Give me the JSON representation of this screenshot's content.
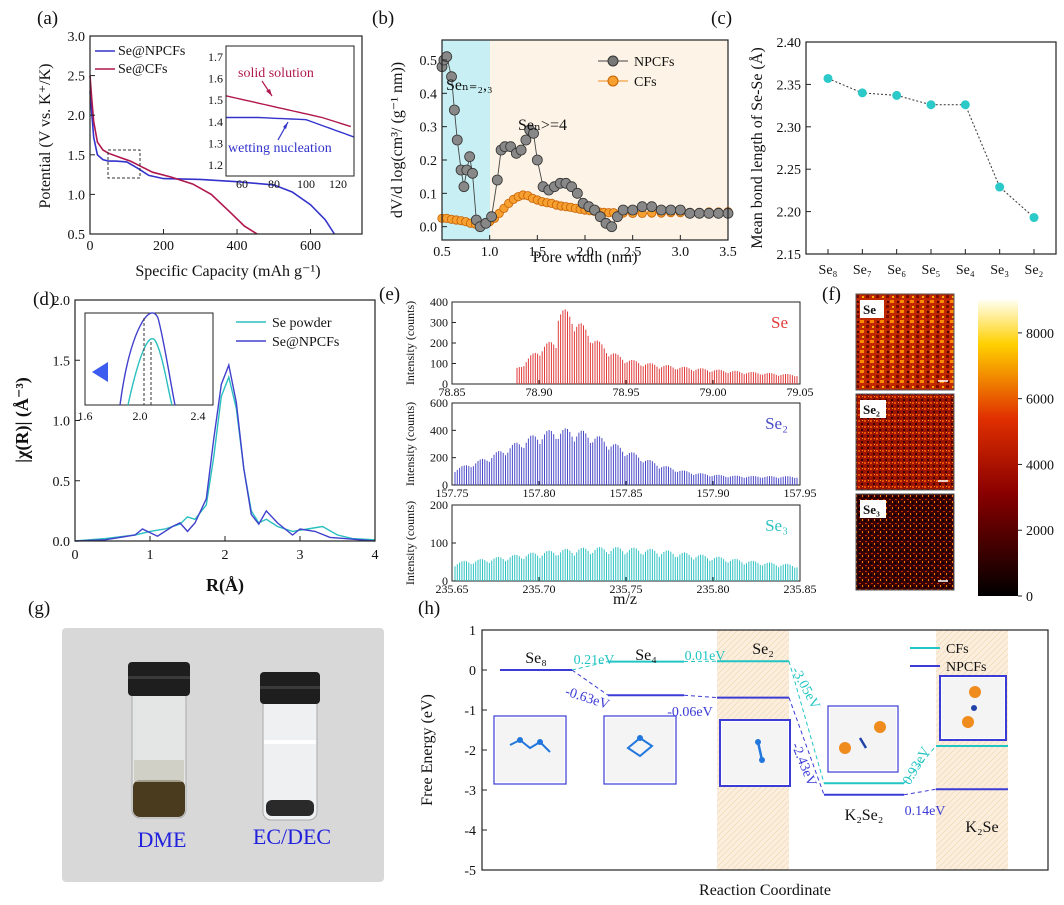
{
  "panels": {
    "a": {
      "label": "(a)",
      "xlabel": "Specific Capacity (mAh g⁻¹)",
      "ylabel": "Potential (V vs. K⁺/K)",
      "xticks": [
        0,
        200,
        400,
        600
      ],
      "yticks": [
        0.5,
        1.0,
        1.5,
        2.0,
        2.5,
        3.0
      ],
      "legend": [
        "Se@NPCFs",
        "Se@CFs"
      ],
      "inset": {
        "xticks": [
          60,
          80,
          100,
          120
        ],
        "yticks": [
          1.2,
          1.3,
          1.4,
          1.5,
          1.6,
          1.7
        ],
        "annotations": [
          "solid solution",
          "wetting nucleation"
        ]
      }
    },
    "b": {
      "label": "(b)",
      "xlabel": "Pore width (nm)",
      "ylabel": "dV/d log(cm³/ (g⁻¹ nm))",
      "xticks": [
        "0.5",
        "1.0",
        "1.5",
        "2.0",
        "2.5",
        "3.0",
        "3.5"
      ],
      "yticks": [
        "0.0",
        "0.1",
        "0.2",
        "0.3",
        "0.4",
        "0.5"
      ],
      "legend": [
        "NPCFs",
        "CFs"
      ],
      "annotations": [
        "Seₙ₌₂,₃",
        "Seₙ>=4"
      ]
    },
    "c": {
      "label": "(c)",
      "ylabel": "Mean bond length of Se-Se (Å)",
      "xticks": [
        "Se₈",
        "Se₇",
        "Se₆",
        "Se₅",
        "Se₄",
        "Se₃",
        "Se₂"
      ],
      "yticks": [
        "2.15",
        "2.20",
        "2.25",
        "2.30",
        "2.35",
        "2.40"
      ]
    },
    "d": {
      "label": "(d)",
      "xlabel": "R(Å)",
      "ylabel": "|χ(R)| (Å⁻³)",
      "xticks": [
        0,
        1,
        2,
        3,
        4
      ],
      "yticks": [
        "0.0",
        "0.5",
        "1.0",
        "1.5",
        "2.0"
      ],
      "legend": [
        "Se powder",
        "Se@NPCFs"
      ],
      "inset": {
        "xticks": [
          "1.6",
          "2.0",
          "2.4"
        ]
      }
    },
    "e": {
      "label": "(e)",
      "xlabel": "m/z",
      "ylabel": "Intensity (counts)",
      "subplots": [
        {
          "name": "Se",
          "xticks": [
            "78.85",
            "78.90",
            "78.95",
            "79.00",
            "79.05"
          ],
          "yticks": [
            "0",
            "100",
            "200",
            "300",
            "400"
          ]
        },
        {
          "name": "Se₂",
          "xticks": [
            "157.75",
            "157.80",
            "157.85",
            "157.90",
            "157.95"
          ],
          "yticks": [
            "0",
            "200",
            "400",
            "600"
          ]
        },
        {
          "name": "Se₃",
          "xticks": [
            "235.65",
            "235.70",
            "235.75",
            "235.80",
            "235.85"
          ],
          "yticks": [
            "0",
            "100",
            "200"
          ]
        }
      ]
    },
    "f": {
      "label": "(f)",
      "maps": [
        "Se",
        "Se₂",
        "Se₃"
      ],
      "colorbar_ticks": [
        "0",
        "2000",
        "4000",
        "6000",
        "8000"
      ]
    },
    "g": {
      "label": "(g)",
      "vials": [
        "DME",
        "EC/DEC"
      ]
    },
    "h": {
      "label": "(h)",
      "xlabel": "Reaction Coordinate",
      "ylabel": "Free Energy (eV)",
      "yticks": [
        "1",
        "0",
        "-1",
        "-2",
        "-3",
        "-4",
        "-5"
      ],
      "legend": [
        "CFs",
        "NPCFs"
      ],
      "states": [
        "Se₈",
        "Se₄",
        "Se₂",
        "K₂Se₂",
        "K₂Se"
      ],
      "cfs_steps": [
        "0.21eV",
        "0.01eV",
        "-3.05eV",
        "0.93eV"
      ],
      "npcfs_steps": [
        "-0.63eV",
        "-0.06eV",
        "-2.43eV",
        "0.14eV"
      ]
    }
  },
  "chart_data": [
    {
      "type": "line",
      "panel": "a",
      "xlabel": "Specific Capacity (mAh g⁻¹)",
      "ylabel": "Potential (V vs. K⁺/K)",
      "xlim": [
        0,
        740
      ],
      "ylim": [
        0.5,
        3.0
      ],
      "series": [
        {
          "name": "Se@NPCFs",
          "color": "#3333cc",
          "x": [
            0,
            5,
            10,
            20,
            35,
            50,
            70,
            100,
            130,
            160,
            200,
            300,
            400,
            500,
            550,
            600,
            640,
            665
          ],
          "y": [
            2.3,
            2.02,
            1.72,
            1.5,
            1.44,
            1.42,
            1.42,
            1.41,
            1.33,
            1.24,
            1.2,
            1.19,
            1.16,
            1.12,
            1.03,
            0.87,
            0.68,
            0.5
          ]
        },
        {
          "name": "Se@CFs",
          "color": "#b0174e",
          "x": [
            0,
            5,
            10,
            20,
            35,
            50,
            80,
            110,
            140,
            170,
            220,
            280,
            330,
            380,
            420,
            455
          ],
          "y": [
            2.5,
            2.2,
            1.92,
            1.66,
            1.56,
            1.52,
            1.47,
            1.42,
            1.35,
            1.28,
            1.22,
            1.13,
            1.0,
            0.78,
            0.6,
            0.5
          ]
        }
      ]
    },
    {
      "type": "scatter",
      "panel": "b",
      "xlabel": "Pore width (nm)",
      "xlim": [
        0.5,
        3.5
      ],
      "ylim": [
        -0.04,
        0.56
      ],
      "series": [
        {
          "name": "NPCFs",
          "color": "#666666",
          "x": [
            0.5,
            0.52,
            0.55,
            0.6,
            0.63,
            0.66,
            0.7,
            0.73,
            0.76,
            0.79,
            0.82,
            0.86,
            0.9,
            0.96,
            1.02,
            1.08,
            1.12,
            1.16,
            1.22,
            1.28,
            1.33,
            1.38,
            1.42,
            1.46,
            1.5,
            1.56,
            1.62,
            1.68,
            1.74,
            1.8,
            1.86,
            1.92,
            1.98,
            2.04,
            2.1,
            2.16,
            2.22,
            2.28,
            2.34,
            2.4,
            2.5,
            2.6,
            2.7,
            2.8,
            2.9,
            3.0,
            3.1,
            3.2,
            3.3,
            3.4,
            3.5
          ],
          "y": [
            0.48,
            0.5,
            0.51,
            0.45,
            0.35,
            0.26,
            0.17,
            0.12,
            0.17,
            0.21,
            0.16,
            0.02,
            0.0,
            0.01,
            0.03,
            0.14,
            0.23,
            0.24,
            0.24,
            0.22,
            0.23,
            0.26,
            0.29,
            0.28,
            0.2,
            0.12,
            0.11,
            0.12,
            0.13,
            0.13,
            0.12,
            0.1,
            0.07,
            0.06,
            0.05,
            0.03,
            0.01,
            0.0,
            0.03,
            0.05,
            0.05,
            0.06,
            0.06,
            0.05,
            0.05,
            0.05,
            0.04,
            0.04,
            0.04,
            0.04,
            0.04
          ]
        },
        {
          "name": "CFs",
          "color": "#f08c1e",
          "x": [
            0.5,
            0.55,
            0.6,
            0.65,
            0.7,
            0.75,
            0.8,
            0.85,
            0.9,
            0.95,
            1.0,
            1.05,
            1.1,
            1.15,
            1.2,
            1.25,
            1.3,
            1.35,
            1.4,
            1.45,
            1.5,
            1.55,
            1.6,
            1.65,
            1.7,
            1.75,
            1.8,
            1.85,
            1.9,
            1.95,
            2.0,
            2.05,
            2.1,
            2.15,
            2.2,
            2.25,
            2.3,
            2.4,
            2.5,
            2.6,
            2.7,
            2.8,
            2.9,
            3.0,
            3.1,
            3.2,
            3.3,
            3.4,
            3.5
          ],
          "y": [
            0.025,
            0.025,
            0.022,
            0.02,
            0.018,
            0.015,
            0.01,
            0.008,
            0.008,
            0.01,
            0.015,
            0.025,
            0.04,
            0.055,
            0.07,
            0.082,
            0.09,
            0.095,
            0.093,
            0.085,
            0.08,
            0.075,
            0.072,
            0.07,
            0.065,
            0.062,
            0.06,
            0.058,
            0.055,
            0.052,
            0.05,
            0.048,
            0.046,
            0.044,
            0.043,
            0.042,
            0.042,
            0.041,
            0.04,
            0.04,
            0.041,
            0.041,
            0.042,
            0.042,
            0.043,
            0.043,
            0.044,
            0.044,
            0.045
          ]
        }
      ]
    },
    {
      "type": "line",
      "panel": "c",
      "ylabel": "Mean bond length of Se-Se (Å)",
      "categories": [
        "Se₈",
        "Se₇",
        "Se₆",
        "Se₅",
        "Se₄",
        "Se₃",
        "Se₂"
      ],
      "ylim": [
        2.15,
        2.4
      ],
      "values": [
        2.357,
        2.34,
        2.337,
        2.326,
        2.326,
        2.229,
        2.193
      ]
    },
    {
      "type": "line",
      "panel": "d",
      "xlabel": "R(Å)",
      "ylabel": "|χ(R)| (Å⁻³)",
      "xlim": [
        0,
        4
      ],
      "ylim": [
        0,
        2.0
      ],
      "series": [
        {
          "name": "Se powder",
          "color": "#2bbfc0",
          "x": [
            0,
            0.4,
            0.8,
            1.0,
            1.2,
            1.4,
            1.5,
            1.6,
            1.75,
            1.85,
            1.95,
            2.05,
            2.15,
            2.25,
            2.35,
            2.45,
            2.55,
            2.7,
            2.9,
            3.1,
            3.3,
            3.5,
            3.7,
            4.0
          ],
          "y": [
            0.0,
            0.02,
            0.05,
            0.08,
            0.1,
            0.14,
            0.2,
            0.18,
            0.3,
            0.7,
            1.2,
            1.36,
            1.1,
            0.6,
            0.25,
            0.15,
            0.18,
            0.12,
            0.08,
            0.1,
            0.12,
            0.05,
            0.02,
            0.01
          ]
        },
        {
          "name": "Se@NPCFs",
          "color": "#4040cc",
          "x": [
            0,
            0.4,
            0.8,
            0.9,
            1.0,
            1.1,
            1.3,
            1.4,
            1.5,
            1.6,
            1.75,
            1.85,
            1.95,
            2.05,
            2.15,
            2.25,
            2.35,
            2.45,
            2.55,
            2.7,
            2.9,
            3.0,
            3.2,
            3.4,
            3.6,
            4.0
          ],
          "y": [
            0.0,
            0.01,
            0.05,
            0.1,
            0.07,
            0.04,
            0.12,
            0.15,
            0.08,
            0.15,
            0.35,
            0.85,
            1.3,
            1.46,
            1.15,
            0.6,
            0.22,
            0.14,
            0.25,
            0.15,
            0.05,
            0.1,
            0.08,
            0.03,
            0.02,
            0.0
          ]
        }
      ]
    },
    {
      "type": "line",
      "panel": "h",
      "ylabel": "Free Energy (eV)",
      "categories": [
        "Se₈",
        "Se₄",
        "Se₂",
        "K₂Se₂",
        "K₂Se"
      ],
      "ylim": [
        -5,
        1
      ],
      "series": [
        {
          "name": "CFs",
          "color": "#22c4c4",
          "values": [
            0.0,
            0.21,
            0.22,
            -2.83,
            -1.9
          ]
        },
        {
          "name": "NPCFs",
          "color": "#3b3bd6",
          "values": [
            0.0,
            -0.63,
            -0.69,
            -3.12,
            -2.98
          ]
        }
      ]
    }
  ]
}
